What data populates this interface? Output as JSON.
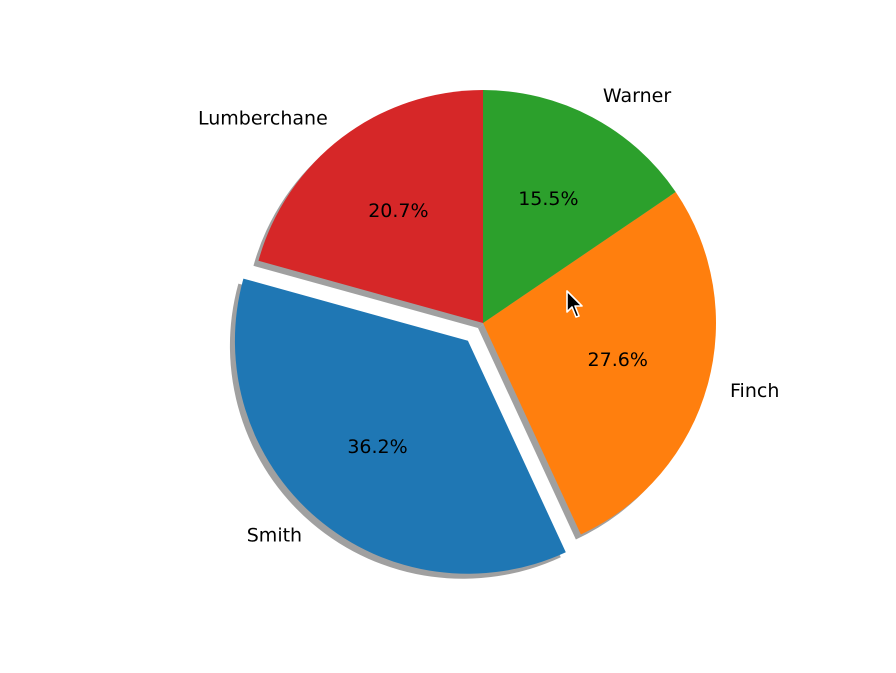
{
  "chart_data": {
    "type": "pie",
    "title": "",
    "categories": [
      "Lumberchane",
      "Smith",
      "Finch",
      "Warner"
    ],
    "values": [
      20.7,
      36.2,
      27.6,
      15.5
    ],
    "percent_labels": [
      "20.7%",
      "36.2%",
      "27.6%",
      "15.5%"
    ],
    "colors": [
      "#d62728",
      "#1f77b4",
      "#ff7f0e",
      "#2ca02c"
    ],
    "explode": [
      0,
      0.1,
      0,
      0
    ],
    "start_angle_deg": 90,
    "direction": "counterclockwise",
    "shadow": true,
    "legend": "none"
  },
  "cursor": {
    "icon": "mouse-pointer-icon"
  }
}
